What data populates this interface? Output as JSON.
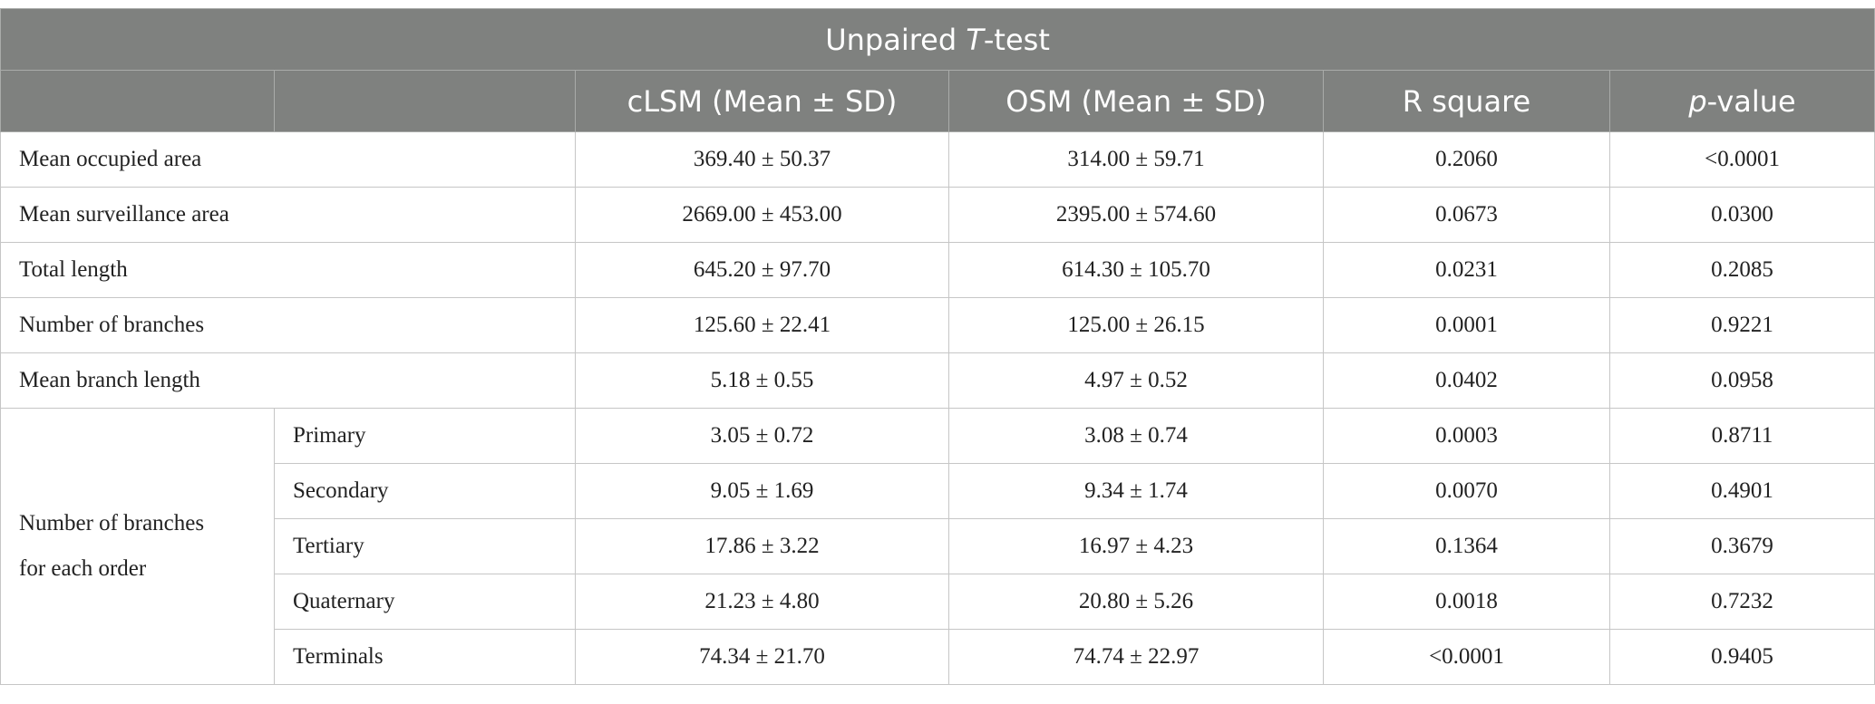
{
  "title": {
    "before": "Unpaired ",
    "italic": "T",
    "after": "-test"
  },
  "header": {
    "col1": "cLSM (Mean ± SD)",
    "col2": "OSM (Mean ± SD)",
    "col3": "R square",
    "col4": {
      "italic": "p",
      "after": "-value"
    }
  },
  "rows": [
    {
      "label": "Mean occupied area",
      "cells": [
        "369.40 ± 50.37",
        "314.00 ± 59.71",
        "0.2060",
        "<0.0001"
      ]
    },
    {
      "label": "Mean surveillance area",
      "cells": [
        "2669.00 ± 453.00",
        "2395.00 ± 574.60",
        "0.0673",
        "0.0300"
      ]
    },
    {
      "label": "Total length",
      "cells": [
        "645.20 ± 97.70",
        "614.30 ± 105.70",
        "0.0231",
        "0.2085"
      ]
    },
    {
      "label": "Number of branches",
      "cells": [
        "125.60 ± 22.41",
        "125.00 ± 26.15",
        "0.0001",
        "0.9221"
      ]
    },
    {
      "label": "Mean branch length",
      "cells": [
        "5.18 ± 0.55",
        "4.97 ± 0.52",
        "0.0402",
        "0.0958"
      ]
    }
  ],
  "group": {
    "label": [
      "Number of branches",
      "for each order"
    ],
    "rows": [
      {
        "label": "Primary",
        "cells": [
          "3.05 ± 0.72",
          "3.08 ± 0.74",
          "0.0003",
          "0.8711"
        ]
      },
      {
        "label": "Secondary",
        "cells": [
          "9.05 ± 1.69",
          "9.34 ± 1.74",
          "0.0070",
          "0.4901"
        ]
      },
      {
        "label": "Tertiary",
        "cells": [
          "17.86 ± 3.22",
          "16.97 ± 4.23",
          "0.1364",
          "0.3679"
        ]
      },
      {
        "label": "Quaternary",
        "cells": [
          "21.23 ± 4.80",
          "20.80 ± 5.26",
          "0.0018",
          "0.7232"
        ]
      },
      {
        "label": "Terminals",
        "cells": [
          "74.34 ± 21.70",
          "74.74 ± 22.97",
          "<0.0001",
          "0.9405"
        ]
      }
    ]
  }
}
